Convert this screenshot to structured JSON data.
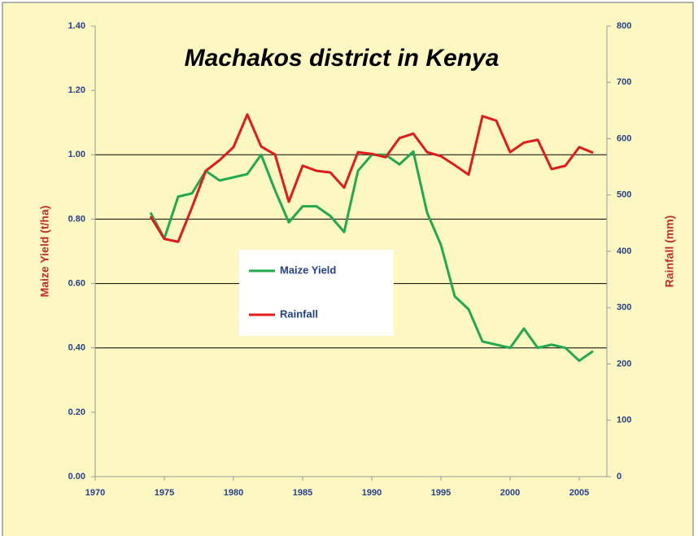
{
  "chart_data": {
    "type": "line",
    "title": "Machakos district in Kenya",
    "y_label": "Maize Yield (t/ha)",
    "y2_label": "Rainfall (mm)",
    "x": [
      1974,
      1975,
      1976,
      1977,
      1978,
      1979,
      1980,
      1981,
      1982,
      1983,
      1984,
      1985,
      1986,
      1987,
      1988,
      1989,
      1990,
      1991,
      1992,
      1993,
      1994,
      1995,
      1996,
      1997,
      1998,
      1999,
      2000,
      2001,
      2002,
      2003,
      2004,
      2005,
      2006
    ],
    "series": [
      {
        "name": "Maize Yield",
        "color": "#22a94f",
        "axis": "y",
        "values": [
          0.82,
          0.74,
          0.87,
          0.88,
          0.95,
          0.92,
          0.93,
          0.94,
          1.0,
          0.89,
          0.79,
          0.84,
          0.84,
          0.81,
          0.76,
          0.95,
          1.0,
          1.0,
          0.97,
          1.01,
          0.82,
          0.72,
          0.56,
          0.52,
          0.42,
          0.41,
          0.4,
          0.46,
          0.4,
          0.41,
          0.4,
          0.36,
          0.39
        ]
      },
      {
        "name": "Rainfall",
        "color": "#e01b1b",
        "axis": "y2",
        "values": [
          462,
          422,
          417,
          478,
          543,
          562,
          585,
          643,
          586,
          572,
          488,
          552,
          543,
          540,
          513,
          576,
          573,
          567,
          601,
          609,
          576,
          569,
          553,
          536,
          640,
          632,
          576,
          593,
          598,
          546,
          552,
          585,
          575
        ]
      }
    ],
    "xlim": [
      1970,
      2007
    ],
    "xticks": [
      1970,
      1975,
      1980,
      1985,
      1990,
      1995,
      2000,
      2005
    ],
    "ylim": [
      0,
      1.4
    ],
    "yticks": [
      {
        "value": 0,
        "label": "0.00"
      },
      {
        "value": 0.2,
        "label": "0.20"
      },
      {
        "value": 0.4,
        "label": "0.40"
      },
      {
        "value": 0.6,
        "label": "0.60"
      },
      {
        "value": 0.8,
        "label": "0.80"
      },
      {
        "value": 1.0,
        "label": "1.00"
      },
      {
        "value": 1.2,
        "label": "1.20"
      },
      {
        "value": 1.4,
        "label": "1.40"
      }
    ],
    "y2lim": [
      0,
      800
    ],
    "y2ticks": [
      0,
      100,
      200,
      300,
      400,
      500,
      600,
      700,
      800
    ],
    "grid_lines": [
      0.4,
      0.6,
      0.8,
      1.0
    ],
    "legend": "center"
  }
}
